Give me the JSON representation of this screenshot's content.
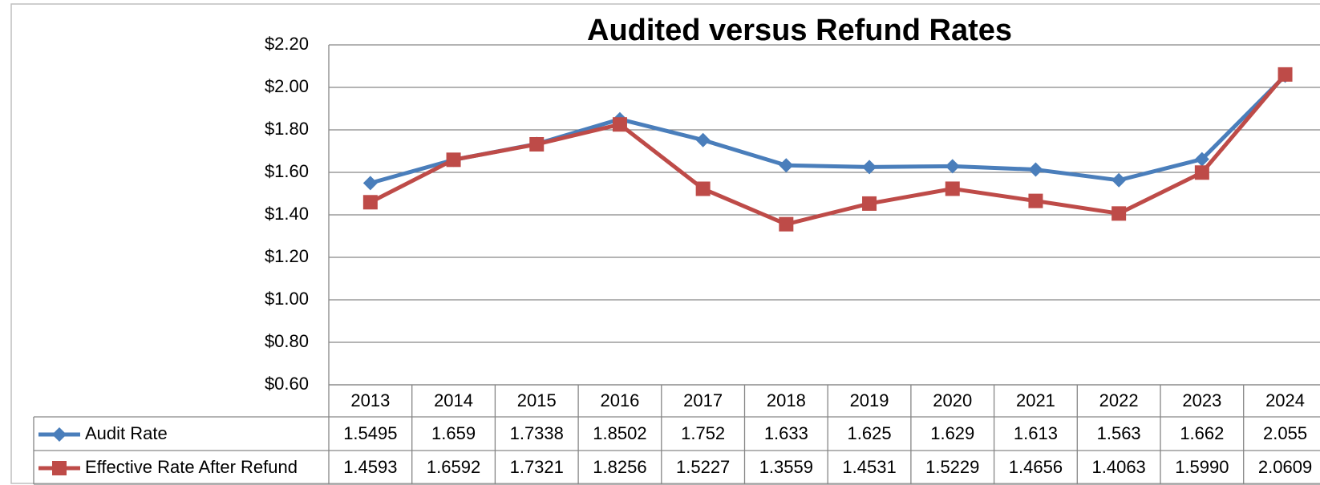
{
  "chart_data": {
    "type": "line",
    "title": "Audited versus Refund Rates",
    "categories": [
      "2013",
      "2014",
      "2015",
      "2016",
      "2017",
      "2018",
      "2019",
      "2020",
      "2021",
      "2022",
      "2023",
      "2024"
    ],
    "series": [
      {
        "name": "Audit Rate",
        "color": "#4a7ebb",
        "marker": "diamond",
        "values": [
          1.5495,
          1.659,
          1.7338,
          1.8502,
          1.752,
          1.633,
          1.625,
          1.629,
          1.613,
          1.563,
          1.662,
          2.055
        ],
        "value_labels": [
          "1.5495",
          "1.659",
          "1.7338",
          "1.8502",
          "1.752",
          "1.633",
          "1.625",
          "1.629",
          "1.613",
          "1.563",
          "1.662",
          "2.055"
        ]
      },
      {
        "name": "Effective Rate After Refund",
        "color": "#be4b48",
        "marker": "square",
        "values": [
          1.4593,
          1.6592,
          1.7321,
          1.8256,
          1.5227,
          1.3559,
          1.4531,
          1.5229,
          1.4656,
          1.4063,
          1.599,
          2.0609
        ],
        "value_labels": [
          "1.4593",
          "1.6592",
          "1.7321",
          "1.8256",
          "1.5227",
          "1.3559",
          "1.4531",
          "1.5229",
          "1.4656",
          "1.4063",
          "1.5990",
          "2.0609"
        ]
      }
    ],
    "ylim": [
      0.6,
      2.2
    ],
    "yticks": [
      {
        "value": 0.6,
        "label": "$0.60"
      },
      {
        "value": 0.8,
        "label": "$0.80"
      },
      {
        "value": 1.0,
        "label": "$1.00"
      },
      {
        "value": 1.2,
        "label": "$1.20"
      },
      {
        "value": 1.4,
        "label": "$1.40"
      },
      {
        "value": 1.6,
        "label": "$1.60"
      },
      {
        "value": 1.8,
        "label": "$1.80"
      },
      {
        "value": 2.0,
        "label": "$2.00"
      },
      {
        "value": 2.2,
        "label": "$2.20"
      }
    ],
    "grid": true
  }
}
